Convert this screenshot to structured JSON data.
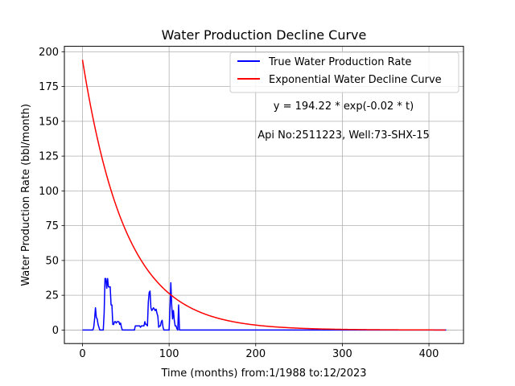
{
  "chart_data": {
    "type": "line",
    "title": "Water Production Decline Curve",
    "xlabel": "Time (months) from:1/1988 to:12/2023",
    "ylabel": "Water Production Rate (bbl/month)",
    "xlim": [
      -20.9,
      439.9
    ],
    "ylim": [
      -9.7,
      203.9
    ],
    "x_ticks": [
      0,
      100,
      200,
      300,
      400
    ],
    "y_ticks": [
      0,
      25,
      50,
      75,
      100,
      125,
      150,
      175,
      200
    ],
    "grid": true,
    "legend_position": "top-right",
    "annotations": [
      "y = 194.22 * exp(-0.02 * t)",
      "Api No:2511223, Well:73-SHX-15"
    ],
    "series": [
      {
        "name": "True Water Production Rate",
        "color": "#0000ff",
        "points": [
          [
            0,
            0
          ],
          [
            12,
            0
          ],
          [
            13,
            2
          ],
          [
            14,
            8
          ],
          [
            15,
            16
          ],
          [
            16,
            9
          ],
          [
            17,
            8
          ],
          [
            18,
            4
          ],
          [
            19,
            2
          ],
          [
            20,
            0
          ],
          [
            24,
            0
          ],
          [
            25,
            12
          ],
          [
            26,
            37
          ],
          [
            27,
            37
          ],
          [
            28,
            30
          ],
          [
            29,
            37
          ],
          [
            30,
            31
          ],
          [
            31,
            31
          ],
          [
            32,
            31
          ],
          [
            33,
            18
          ],
          [
            34,
            18
          ],
          [
            35,
            4
          ],
          [
            36,
            4
          ],
          [
            37,
            6
          ],
          [
            38,
            6
          ],
          [
            39,
            5
          ],
          [
            40,
            6
          ],
          [
            41,
            6
          ],
          [
            42,
            6
          ],
          [
            43,
            4
          ],
          [
            44,
            5
          ],
          [
            45,
            2
          ],
          [
            46,
            0
          ],
          [
            60,
            0
          ],
          [
            61,
            3
          ],
          [
            62,
            3
          ],
          [
            63,
            3
          ],
          [
            64,
            3
          ],
          [
            65,
            3
          ],
          [
            66,
            3
          ],
          [
            67,
            2
          ],
          [
            68,
            3
          ],
          [
            69,
            3
          ],
          [
            70,
            3
          ],
          [
            71,
            3
          ],
          [
            72,
            6
          ],
          [
            73,
            4
          ],
          [
            74,
            4
          ],
          [
            75,
            3
          ],
          [
            76,
            20
          ],
          [
            77,
            27
          ],
          [
            78,
            28
          ],
          [
            79,
            16
          ],
          [
            80,
            14
          ],
          [
            81,
            15
          ],
          [
            82,
            16
          ],
          [
            83,
            15
          ],
          [
            84,
            14
          ],
          [
            85,
            15
          ],
          [
            86,
            12
          ],
          [
            87,
            10
          ],
          [
            88,
            2
          ],
          [
            89,
            3
          ],
          [
            90,
            3
          ],
          [
            91,
            6
          ],
          [
            92,
            7
          ],
          [
            93,
            2
          ],
          [
            94,
            0
          ],
          [
            100,
            0
          ],
          [
            101,
            15
          ],
          [
            102,
            34
          ],
          [
            103,
            18
          ],
          [
            104,
            8
          ],
          [
            105,
            14
          ],
          [
            106,
            7
          ],
          [
            107,
            3
          ],
          [
            108,
            3
          ],
          [
            109,
            1
          ],
          [
            110,
            0
          ],
          [
            111,
            18
          ],
          [
            112,
            0
          ],
          [
            420,
            0
          ]
        ]
      },
      {
        "name": "Exponential Water Decline Curve",
        "color": "#ff0000",
        "equation": {
          "a": 194.22,
          "b": 0.02
        },
        "x_range": [
          0,
          419
        ],
        "step": 1
      }
    ]
  }
}
